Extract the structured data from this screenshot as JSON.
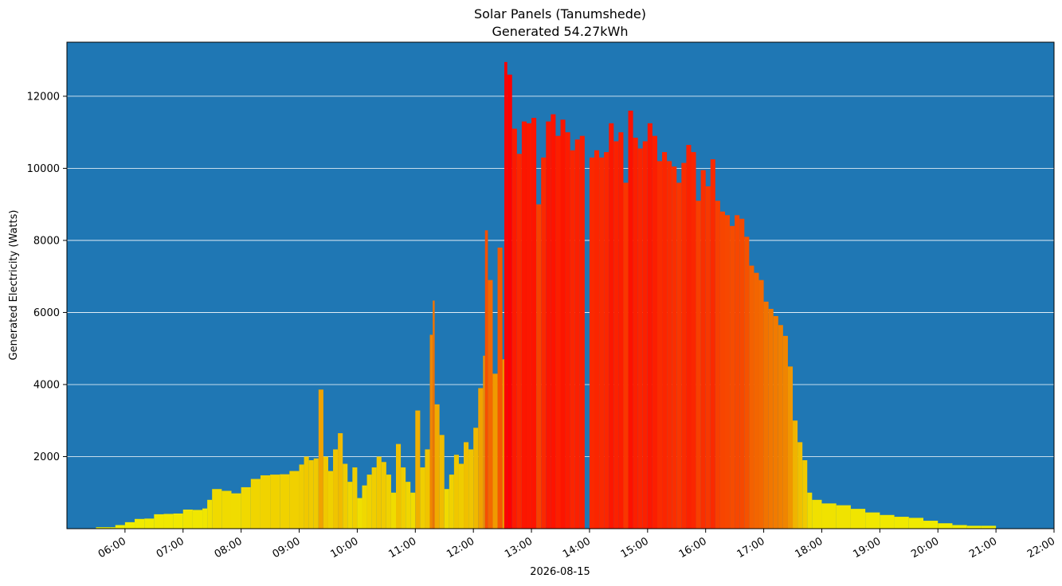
{
  "chart_data": {
    "type": "bar",
    "title": "Solar Panels (Tanumshede)",
    "subtitle": "Generated 54.27kWh",
    "xlabel": "2026-08-15",
    "ylabel": "Generated Electricity (Watts)",
    "xlim_hours": [
      5.0,
      22.0
    ],
    "ylim": [
      0,
      13500
    ],
    "yticks": [
      2000,
      4000,
      6000,
      8000,
      10000,
      12000
    ],
    "yticks_labels": [
      "2000",
      "4000",
      "6000",
      "8000",
      "10000",
      "12000"
    ],
    "xticks_hours": [
      6,
      7,
      8,
      9,
      10,
      11,
      12,
      13,
      14,
      15,
      16,
      17,
      18,
      19,
      20,
      21,
      22
    ],
    "xticks_labels": [
      "06:00",
      "07:00",
      "08:00",
      "09:00",
      "10:00",
      "11:00",
      "12:00",
      "13:00",
      "14:00",
      "15:00",
      "16:00",
      "17:00",
      "18:00",
      "19:00",
      "20:00",
      "21:00",
      "22:00"
    ],
    "grid": "horizontal",
    "colors": {
      "background": "#1f77b4",
      "low": "#f0f000",
      "mid": "#f08000",
      "high": "#ff0000",
      "grid": "#ffffff"
    },
    "points": [
      [
        "05:30",
        40
      ],
      [
        "05:45",
        40
      ],
      [
        "05:50",
        100
      ],
      [
        "06:00",
        180
      ],
      [
        "06:10",
        270
      ],
      [
        "06:20",
        280
      ],
      [
        "06:30",
        400
      ],
      [
        "06:40",
        410
      ],
      [
        "06:50",
        420
      ],
      [
        "07:00",
        530
      ],
      [
        "07:10",
        520
      ],
      [
        "07:20",
        560
      ],
      [
        "07:25",
        800
      ],
      [
        "07:30",
        1100
      ],
      [
        "07:40",
        1050
      ],
      [
        "07:50",
        980
      ],
      [
        "08:00",
        1150
      ],
      [
        "08:10",
        1380
      ],
      [
        "08:20",
        1480
      ],
      [
        "08:30",
        1500
      ],
      [
        "08:40",
        1510
      ],
      [
        "08:50",
        1600
      ],
      [
        "09:00",
        1780
      ],
      [
        "09:05",
        2000
      ],
      [
        "09:10",
        1900
      ],
      [
        "09:15",
        1950
      ],
      [
        "09:20",
        3860
      ],
      [
        "09:25",
        2000
      ],
      [
        "09:30",
        1600
      ],
      [
        "09:35",
        2200
      ],
      [
        "09:40",
        2650
      ],
      [
        "09:45",
        1800
      ],
      [
        "09:50",
        1300
      ],
      [
        "09:55",
        1700
      ],
      [
        "10:00",
        850
      ],
      [
        "10:05",
        1200
      ],
      [
        "10:10",
        1500
      ],
      [
        "10:15",
        1700
      ],
      [
        "10:20",
        2000
      ],
      [
        "10:25",
        1850
      ],
      [
        "10:30",
        1500
      ],
      [
        "10:35",
        1000
      ],
      [
        "10:40",
        2350
      ],
      [
        "10:45",
        1700
      ],
      [
        "10:50",
        1300
      ],
      [
        "10:55",
        1000
      ],
      [
        "11:00",
        3280
      ],
      [
        "11:05",
        1700
      ],
      [
        "11:10",
        2200
      ],
      [
        "11:15",
        5380
      ],
      [
        "11:18",
        6330
      ],
      [
        "11:20",
        3450
      ],
      [
        "11:25",
        2600
      ],
      [
        "11:30",
        1100
      ],
      [
        "11:35",
        1500
      ],
      [
        "11:40",
        2050
      ],
      [
        "11:45",
        1800
      ],
      [
        "11:50",
        2400
      ],
      [
        "11:55",
        2200
      ],
      [
        "12:00",
        2800
      ],
      [
        "12:05",
        3900
      ],
      [
        "12:10",
        4800
      ],
      [
        "12:12",
        8280
      ],
      [
        "12:15",
        6900
      ],
      [
        "12:20",
        4300
      ],
      [
        "12:25",
        7800
      ],
      [
        "12:30",
        4700
      ],
      [
        "12:32",
        12950
      ],
      [
        "12:35",
        12600
      ],
      [
        "12:40",
        11100
      ],
      [
        "12:45",
        10400
      ],
      [
        "12:50",
        11300
      ],
      [
        "12:55",
        11250
      ],
      [
        "13:00",
        11400
      ],
      [
        "13:05",
        9000
      ],
      [
        "13:10",
        10300
      ],
      [
        "13:15",
        11300
      ],
      [
        "13:20",
        11500
      ],
      [
        "13:25",
        10900
      ],
      [
        "13:30",
        11350
      ],
      [
        "13:35",
        11000
      ],
      [
        "13:40",
        10500
      ],
      [
        "13:45",
        10800
      ],
      [
        "13:50",
        10900
      ],
      [
        "13:55",
        0
      ],
      [
        "14:00",
        10300
      ],
      [
        "14:05",
        10500
      ],
      [
        "14:10",
        10300
      ],
      [
        "14:15",
        10450
      ],
      [
        "14:20",
        11250
      ],
      [
        "14:25",
        10750
      ],
      [
        "14:30",
        11000
      ],
      [
        "14:35",
        9600
      ],
      [
        "14:40",
        11600
      ],
      [
        "14:45",
        10850
      ],
      [
        "14:50",
        10550
      ],
      [
        "14:55",
        10750
      ],
      [
        "15:00",
        11250
      ],
      [
        "15:05",
        10900
      ],
      [
        "15:10",
        10200
      ],
      [
        "15:15",
        10450
      ],
      [
        "15:20",
        10200
      ],
      [
        "15:25",
        10050
      ],
      [
        "15:30",
        9600
      ],
      [
        "15:35",
        10150
      ],
      [
        "15:40",
        10650
      ],
      [
        "15:45",
        10450
      ],
      [
        "15:50",
        9100
      ],
      [
        "15:55",
        9950
      ],
      [
        "16:00",
        9500
      ],
      [
        "16:05",
        10250
      ],
      [
        "16:10",
        9100
      ],
      [
        "16:15",
        8800
      ],
      [
        "16:20",
        8700
      ],
      [
        "16:25",
        8400
      ],
      [
        "16:30",
        8700
      ],
      [
        "16:35",
        8600
      ],
      [
        "16:40",
        8100
      ],
      [
        "16:45",
        7300
      ],
      [
        "16:50",
        7100
      ],
      [
        "16:55",
        6900
      ],
      [
        "17:00",
        6300
      ],
      [
        "17:05",
        6100
      ],
      [
        "17:10",
        5900
      ],
      [
        "17:15",
        5650
      ],
      [
        "17:20",
        5350
      ],
      [
        "17:25",
        4500
      ],
      [
        "17:30",
        3000
      ],
      [
        "17:35",
        2400
      ],
      [
        "17:40",
        1900
      ],
      [
        "17:45",
        1000
      ],
      [
        "17:50",
        800
      ],
      [
        "18:00",
        700
      ],
      [
        "18:15",
        650
      ],
      [
        "18:30",
        550
      ],
      [
        "18:45",
        450
      ],
      [
        "19:00",
        380
      ],
      [
        "19:15",
        330
      ],
      [
        "19:30",
        300
      ],
      [
        "19:45",
        220
      ],
      [
        "20:00",
        150
      ],
      [
        "20:15",
        100
      ],
      [
        "20:30",
        80
      ],
      [
        "20:45",
        80
      ]
    ]
  }
}
